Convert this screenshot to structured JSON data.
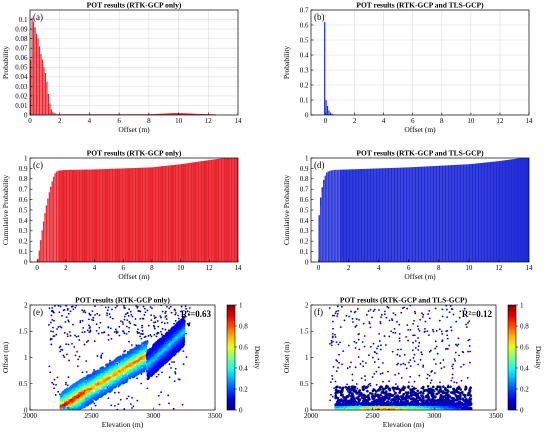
{
  "colorbar": {
    "label": "Density",
    "ticks": [
      "0",
      "0.2",
      "0.4",
      "0.6",
      "0.8",
      "1"
    ]
  },
  "chart_data": [
    {
      "id": "a",
      "type": "bar",
      "panel_label": "(a)",
      "title": "POT results (RTK-GCP only)",
      "xlabel": "Offset (m)",
      "ylabel": "Probability",
      "xlim": [
        0,
        14
      ],
      "ylim": [
        0,
        0.11
      ],
      "grid": true,
      "xticks": [
        0,
        2,
        4,
        6,
        8,
        10,
        12,
        14
      ],
      "yticks": [
        0,
        0.01,
        0.02,
        0.03,
        0.04,
        0.05,
        0.06,
        0.07,
        0.08,
        0.09,
        0.1
      ],
      "ytick_labels": [
        "0",
        "0.01",
        "0.02",
        "0.03",
        "0.04",
        "0.05",
        "0.06",
        "0.07",
        "0.08",
        "0.09",
        "0.1"
      ],
      "color": "#e8212b",
      "bin_width": 0.1,
      "x": [
        0.05,
        0.15,
        0.25,
        0.35,
        0.45,
        0.55,
        0.65,
        0.75,
        0.85,
        0.95,
        1.05,
        1.15,
        1.25,
        1.35,
        1.45,
        1.55,
        1.65,
        1.75,
        1.85,
        1.95
      ],
      "values": [
        0.058,
        0.102,
        0.098,
        0.092,
        0.085,
        0.08,
        0.072,
        0.064,
        0.058,
        0.05,
        0.044,
        0.035,
        0.022,
        0.012,
        0.006,
        0.003,
        0.002,
        0.0015,
        0.001,
        0.001
      ],
      "tail": {
        "x_start": 2,
        "x_end": 12.5,
        "level": 0.0008,
        "peak_x": 10,
        "peak": 0.002
      }
    },
    {
      "id": "b",
      "type": "bar",
      "panel_label": "(b)",
      "title": "POT results (RTK-GCP and TLS-GCP)",
      "xlabel": "Offset (m)",
      "ylabel": "Probability",
      "xlim": [
        -1,
        14
      ],
      "ylim": [
        0,
        0.7
      ],
      "grid": true,
      "xticks": [
        0,
        2,
        4,
        6,
        8,
        10,
        12,
        14
      ],
      "yticks": [
        0,
        0.1,
        0.2,
        0.3,
        0.4,
        0.5,
        0.6,
        0.7
      ],
      "ytick_labels": [
        "0",
        "0.1",
        "0.2",
        "0.3",
        "0.4",
        "0.5",
        "0.6",
        "0.7"
      ],
      "color": "#1f2bd6",
      "bin_width": 0.1,
      "x": [
        -0.05,
        0.05,
        0.15,
        0.25,
        0.35,
        0.45,
        0.55,
        0.65
      ],
      "values": [
        0.62,
        0.1,
        0.06,
        0.03,
        0.015,
        0.008,
        0.004,
        0.002
      ],
      "tail": {
        "x_start": 0.7,
        "x_end": 1.2,
        "level": 0.001
      }
    },
    {
      "id": "c",
      "type": "bar",
      "panel_label": "(c)",
      "title": "POT results (RTK-GCP only)",
      "xlabel": "Offset (m)",
      "ylabel": "Cumulative Probability",
      "xlim": [
        -0.5,
        14
      ],
      "ylim": [
        0,
        1
      ],
      "grid": false,
      "xticks": [
        0,
        2,
        4,
        6,
        8,
        10,
        12,
        14
      ],
      "yticks": [
        0,
        0.1,
        0.2,
        0.3,
        0.4,
        0.5,
        0.6,
        0.7,
        0.8,
        0.9,
        1
      ],
      "ytick_labels": [
        "0",
        "0.1",
        "0.2",
        "0.3",
        "0.4",
        "0.5",
        "0.6",
        "0.7",
        "0.8",
        "0.9",
        "1"
      ],
      "color": "#e8212b",
      "cdf_points": [
        [
          0,
          0
        ],
        [
          0.1,
          0.06
        ],
        [
          0.2,
          0.16
        ],
        [
          0.3,
          0.26
        ],
        [
          0.4,
          0.35
        ],
        [
          0.5,
          0.43
        ],
        [
          0.6,
          0.51
        ],
        [
          0.7,
          0.58
        ],
        [
          0.8,
          0.64
        ],
        [
          0.9,
          0.7
        ],
        [
          1.0,
          0.75
        ],
        [
          1.1,
          0.8
        ],
        [
          1.2,
          0.84
        ],
        [
          1.3,
          0.865
        ],
        [
          1.4,
          0.875
        ],
        [
          1.6,
          0.88
        ],
        [
          2,
          0.885
        ],
        [
          4,
          0.89
        ],
        [
          6,
          0.9
        ],
        [
          8,
          0.91
        ],
        [
          10,
          0.94
        ],
        [
          11,
          0.96
        ],
        [
          12,
          0.98
        ],
        [
          12.8,
          0.995
        ],
        [
          13,
          1
        ],
        [
          14,
          1
        ]
      ]
    },
    {
      "id": "d",
      "type": "bar",
      "panel_label": "(d)",
      "title": "POT results (RTK-GCP and TLS-GCP)",
      "xlabel": "Offset (m)",
      "ylabel": "Cumulative Probability",
      "xlim": [
        -0.5,
        14
      ],
      "ylim": [
        0,
        1
      ],
      "grid": false,
      "xticks": [
        0,
        2,
        4,
        6,
        8,
        10,
        12,
        14
      ],
      "yticks": [
        0,
        0.1,
        0.2,
        0.3,
        0.4,
        0.5,
        0.6,
        0.7,
        0.8,
        0.9,
        1
      ],
      "ytick_labels": [
        "0",
        "0.1",
        "0.2",
        "0.3",
        "0.4",
        "0.5",
        "0.6",
        "0.7",
        "0.8",
        "0.9",
        "1"
      ],
      "color": "#1f2bd6",
      "cdf_points": [
        [
          0,
          0
        ],
        [
          0.05,
          0.45
        ],
        [
          0.15,
          0.62
        ],
        [
          0.25,
          0.72
        ],
        [
          0.35,
          0.79
        ],
        [
          0.45,
          0.83
        ],
        [
          0.55,
          0.86
        ],
        [
          0.7,
          0.875
        ],
        [
          1,
          0.885
        ],
        [
          2,
          0.89
        ],
        [
          4,
          0.9
        ],
        [
          6,
          0.91
        ],
        [
          8,
          0.925
        ],
        [
          10,
          0.94
        ],
        [
          12,
          0.97
        ],
        [
          13,
          0.99
        ],
        [
          13.5,
          1
        ],
        [
          14,
          1
        ]
      ]
    },
    {
      "id": "e",
      "type": "scatter",
      "panel_label": "(e)",
      "title": "POT results (RTK-GCP only)",
      "xlabel": "Elevation (m)",
      "ylabel": "Offset (m)",
      "annotation": "R²=0.63",
      "xlim": [
        2000,
        3500
      ],
      "ylim": [
        0,
        2
      ],
      "xticks": [
        2000,
        2500,
        3000,
        3500
      ],
      "yticks": [
        0,
        0.5,
        1,
        1.5,
        2
      ],
      "ytick_labels": [
        "0",
        "0.5",
        "1",
        "1.5",
        "2"
      ],
      "colorscale": "jet",
      "colorbar_range": [
        0,
        1
      ],
      "clusters": [
        {
          "x": [
            2250,
            2450
          ],
          "y": [
            0.05,
            0.35
          ],
          "density": 0.95
        },
        {
          "x": [
            2450,
            2950
          ],
          "y": [
            0.35,
            1.05
          ],
          "density": 0.8
        },
        {
          "x": [
            2950,
            3250
          ],
          "y": [
            0.85,
            1.5
          ],
          "density": 0.35
        }
      ],
      "scatter_range": {
        "x": [
          2150,
          3300
        ],
        "y": [
          0,
          2
        ]
      }
    },
    {
      "id": "f",
      "type": "scatter",
      "panel_label": "(f)",
      "title": "POT results (RTK-GCP and TLS-GCP)",
      "xlabel": "Elevation (m)",
      "ylabel": "Offset (m)",
      "annotation": "R²=0.12",
      "xlim": [
        2000,
        3500
      ],
      "ylim": [
        0,
        2
      ],
      "xticks": [
        2000,
        2500,
        3000,
        3500
      ],
      "yticks": [
        0,
        0.5,
        1,
        1.5,
        2
      ],
      "ytick_labels": [
        "0",
        "0.5",
        "1",
        "1.5",
        "2"
      ],
      "colorscale": "jet",
      "colorbar_range": [
        0,
        1
      ],
      "clusters": [
        {
          "x": [
            2200,
            3300
          ],
          "y": [
            0.0,
            0.12
          ],
          "density": 0.95
        },
        {
          "x": [
            2200,
            3300
          ],
          "y": [
            0.1,
            0.45
          ],
          "density": 0.25
        }
      ],
      "scatter_range": {
        "x": [
          2150,
          3300
        ],
        "y": [
          0,
          2
        ]
      }
    }
  ]
}
